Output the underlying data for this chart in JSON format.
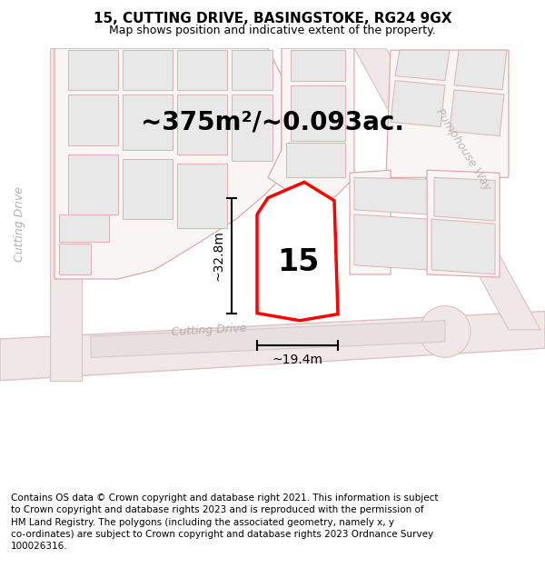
{
  "title_line1": "15, CUTTING DRIVE, BASINGSTOKE, RG24 9GX",
  "title_line2": "Map shows position and indicative extent of the property.",
  "footer_text": "Contains OS data © Crown copyright and database right 2021. This information is subject\nto Crown copyright and database rights 2023 and is reproduced with the permission of\nHM Land Registry. The polygons (including the associated geometry, namely x, y\nco-ordinates) are subject to Crown copyright and database rights 2023 Ordnance Survey\n100026316.",
  "area_label": "~375m²/~0.093ac.",
  "number_label": "15",
  "width_label": "~19.4m",
  "height_label": "~32.8m",
  "street_label_cutting": "Cutting Drive",
  "street_label_cutting2": "Cutting Drive",
  "street_label_pump": "Pumphouse Way",
  "highlight_color": "#ff0000",
  "bld_fill": "#e8e8e8",
  "bld_edge": "#e0b0b0",
  "road_fill": "#f0e8e8",
  "road_edge": "#e0c0c0",
  "pink_edge": "#e0a0a0",
  "dim_color": "#000000",
  "road_text_color": "#b8b0b0",
  "title_fontsize": 11,
  "subtitle_fontsize": 9,
  "footer_fontsize": 7.5,
  "area_fontsize": 20,
  "number_fontsize": 24,
  "dim_fontsize": 10,
  "road_fontsize": 9
}
